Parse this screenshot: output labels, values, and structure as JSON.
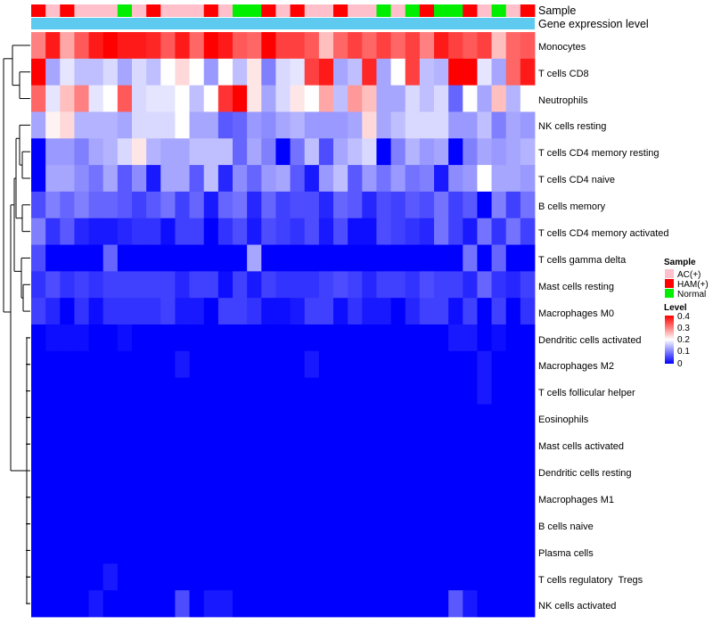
{
  "chart_data": {
    "type": "heatmap",
    "title": "",
    "annotations": [
      {
        "name": "Sample",
        "values": [
          "HAM(+)",
          "AC(+)",
          "HAM(+)",
          "AC(+)",
          "AC(+)",
          "AC(+)",
          "Normal",
          "AC(+)",
          "HAM(+)",
          "AC(+)",
          "AC(+)",
          "AC(+)",
          "HAM(+)",
          "AC(+)",
          "Normal",
          "Normal",
          "HAM(+)",
          "AC(+)",
          "HAM(+)",
          "AC(+)",
          "AC(+)",
          "HAM(+)",
          "AC(+)",
          "AC(+)",
          "Normal",
          "AC(+)",
          "Normal",
          "HAM(+)",
          "Normal",
          "Normal",
          "HAM(+)",
          "AC(+)",
          "Normal",
          "AC(+)",
          "HAM(+)"
        ]
      },
      {
        "name": "Gene expression level",
        "values": "all-high"
      }
    ],
    "rows": [
      "Monocytes",
      "T cells CD8",
      "Neutrophils",
      "NK cells resting",
      "T cells CD4 memory resting",
      "T cells CD4 naive",
      "B cells memory",
      "T cells CD4 memory activated",
      "T cells gamma delta",
      "Mast cells resting",
      "Macrophages M0",
      "Dendritic cells activated",
      "Macrophages M2",
      "T cells follicular helper",
      "Eosinophils",
      "Mast cells activated",
      "Dendritic cells resting",
      "Macrophages M1",
      "B cells naive",
      "Plasma cells",
      "T cells regulatory  Tregs",
      "NK cells activated"
    ],
    "n_columns": 35,
    "values": [
      [
        0.3,
        0.38,
        0.27,
        0.33,
        0.38,
        0.4,
        0.38,
        0.38,
        0.37,
        0.33,
        0.38,
        0.32,
        0.4,
        0.38,
        0.33,
        0.32,
        0.4,
        0.35,
        0.35,
        0.33,
        0.25,
        0.32,
        0.35,
        0.32,
        0.35,
        0.32,
        0.35,
        0.3,
        0.38,
        0.35,
        0.33,
        0.35,
        0.25,
        0.32,
        0.33
      ],
      [
        0.4,
        0.13,
        0.18,
        0.15,
        0.15,
        0.17,
        0.13,
        0.17,
        0.15,
        0.2,
        0.23,
        0.2,
        0.12,
        0.2,
        0.15,
        0.22,
        0.1,
        0.17,
        0.18,
        0.35,
        0.38,
        0.13,
        0.15,
        0.37,
        0.13,
        0.2,
        0.35,
        0.15,
        0.14,
        0.4,
        0.4,
        0.18,
        0.13,
        0.32,
        0.38
      ],
      [
        0.32,
        0.18,
        0.25,
        0.3,
        0.18,
        0.2,
        0.33,
        0.17,
        0.18,
        0.18,
        0.2,
        0.15,
        0.2,
        0.36,
        0.4,
        0.22,
        0.13,
        0.17,
        0.22,
        0.2,
        0.27,
        0.15,
        0.28,
        0.25,
        0.13,
        0.13,
        0.17,
        0.15,
        0.17,
        0.08,
        0.2,
        0.13,
        0.25,
        0.14,
        0.2
      ],
      [
        0.13,
        0.21,
        0.23,
        0.14,
        0.14,
        0.14,
        0.13,
        0.17,
        0.17,
        0.17,
        0.2,
        0.13,
        0.13,
        0.07,
        0.08,
        0.12,
        0.11,
        0.13,
        0.14,
        0.12,
        0.12,
        0.12,
        0.13,
        0.23,
        0.13,
        0.15,
        0.17,
        0.17,
        0.17,
        0.12,
        0.12,
        0.15,
        0.1,
        0.13,
        0.12
      ],
      [
        0.0,
        0.12,
        0.12,
        0.1,
        0.13,
        0.14,
        0.17,
        0.22,
        0.14,
        0.13,
        0.13,
        0.15,
        0.15,
        0.15,
        0.08,
        0.13,
        0.1,
        0.0,
        0.09,
        0.15,
        0.06,
        0.13,
        0.15,
        0.17,
        0.0,
        0.1,
        0.14,
        0.12,
        0.13,
        0.0,
        0.1,
        0.13,
        0.12,
        0.13,
        0.14
      ],
      [
        0.0,
        0.13,
        0.13,
        0.11,
        0.09,
        0.13,
        0.07,
        0.11,
        0.02,
        0.13,
        0.13,
        0.07,
        0.15,
        0.03,
        0.11,
        0.08,
        0.12,
        0.13,
        0.07,
        0.02,
        0.12,
        0.15,
        0.07,
        0.12,
        0.09,
        0.12,
        0.09,
        0.1,
        0.02,
        0.11,
        0.12,
        0.2,
        0.13,
        0.13,
        0.12
      ],
      [
        0.06,
        0.1,
        0.08,
        0.1,
        0.08,
        0.08,
        0.07,
        0.05,
        0.07,
        0.09,
        0.05,
        0.08,
        0.02,
        0.08,
        0.09,
        0.03,
        0.08,
        0.05,
        0.06,
        0.06,
        0.03,
        0.08,
        0.07,
        0.03,
        0.06,
        0.05,
        0.07,
        0.06,
        0.09,
        0.05,
        0.07,
        0.0,
        0.1,
        0.05,
        0.09
      ],
      [
        0.1,
        0.04,
        0.07,
        0.03,
        0.02,
        0.02,
        0.03,
        0.04,
        0.04,
        0.01,
        0.05,
        0.05,
        0.0,
        0.04,
        0.06,
        0.02,
        0.06,
        0.05,
        0.04,
        0.06,
        0.02,
        0.06,
        0.01,
        0.01,
        0.06,
        0.05,
        0.04,
        0.03,
        0.09,
        0.05,
        0.02,
        0.09,
        0.04,
        0.09,
        0.05
      ],
      [
        0.06,
        0.0,
        0.0,
        0.0,
        0.0,
        0.08,
        0.0,
        0.0,
        0.0,
        0.0,
        0.0,
        0.0,
        0.0,
        0.0,
        0.0,
        0.13,
        0.0,
        0.0,
        0.0,
        0.0,
        0.0,
        0.0,
        0.0,
        0.0,
        0.0,
        0.0,
        0.0,
        0.0,
        0.0,
        0.0,
        0.09,
        0.0,
        0.08,
        0.0,
        0.0
      ],
      [
        0.04,
        0.06,
        0.04,
        0.05,
        0.04,
        0.05,
        0.05,
        0.05,
        0.05,
        0.05,
        0.03,
        0.05,
        0.05,
        0.01,
        0.05,
        0.02,
        0.05,
        0.04,
        0.04,
        0.04,
        0.05,
        0.06,
        0.05,
        0.03,
        0.05,
        0.05,
        0.04,
        0.06,
        0.05,
        0.05,
        0.03,
        0.08,
        0.04,
        0.03,
        0.05
      ],
      [
        0.05,
        0.03,
        0.0,
        0.04,
        0.01,
        0.04,
        0.04,
        0.04,
        0.04,
        0.05,
        0.02,
        0.02,
        0.0,
        0.05,
        0.05,
        0.04,
        0.01,
        0.01,
        0.02,
        0.05,
        0.05,
        0.01,
        0.04,
        0.02,
        0.02,
        0.0,
        0.03,
        0.05,
        0.05,
        0.01,
        0.05,
        0.0,
        0.05,
        0.0,
        0.04
      ],
      [
        0.0,
        0.01,
        0.01,
        0.01,
        0.0,
        0.0,
        0.01,
        0.0,
        0.0,
        0.0,
        0.0,
        0.0,
        0.0,
        0.0,
        0.0,
        0.0,
        0.0,
        0.0,
        0.0,
        0.0,
        0.0,
        0.0,
        0.0,
        0.0,
        0.0,
        0.0,
        0.0,
        0.0,
        0.0,
        0.02,
        0.02,
        0.0,
        0.01,
        0.0,
        0.0
      ],
      [
        0.0,
        0.0,
        0.0,
        0.0,
        0.0,
        0.0,
        0.0,
        0.0,
        0.0,
        0.0,
        0.02,
        0.0,
        0.0,
        0.0,
        0.0,
        0.0,
        0.0,
        0.0,
        0.0,
        0.02,
        0.0,
        0.0,
        0.0,
        0.0,
        0.0,
        0.0,
        0.0,
        0.0,
        0.0,
        0.0,
        0.0,
        0.02,
        0.0,
        0.0,
        0.0
      ],
      [
        0.0,
        0.0,
        0.0,
        0.0,
        0.0,
        0.0,
        0.0,
        0.0,
        0.0,
        0.0,
        0.0,
        0.0,
        0.0,
        0.0,
        0.0,
        0.0,
        0.0,
        0.0,
        0.0,
        0.0,
        0.0,
        0.0,
        0.0,
        0.0,
        0.0,
        0.0,
        0.0,
        0.0,
        0.0,
        0.0,
        0.0,
        0.02,
        0.0,
        0.0,
        0.0
      ],
      [
        0.0,
        0.0,
        0.0,
        0.0,
        0.0,
        0.0,
        0.0,
        0.0,
        0.0,
        0.0,
        0.0,
        0.0,
        0.0,
        0.0,
        0.0,
        0.0,
        0.0,
        0.0,
        0.0,
        0.0,
        0.0,
        0.0,
        0.0,
        0.0,
        0.0,
        0.0,
        0.0,
        0.0,
        0.0,
        0.0,
        0.0,
        0.0,
        0.0,
        0.0,
        0.0
      ],
      [
        0.0,
        0.0,
        0.0,
        0.0,
        0.0,
        0.0,
        0.0,
        0.0,
        0.0,
        0.0,
        0.0,
        0.0,
        0.0,
        0.0,
        0.0,
        0.0,
        0.0,
        0.0,
        0.0,
        0.0,
        0.0,
        0.0,
        0.0,
        0.0,
        0.0,
        0.0,
        0.0,
        0.0,
        0.0,
        0.0,
        0.0,
        0.0,
        0.0,
        0.0,
        0.0
      ],
      [
        0.0,
        0.0,
        0.0,
        0.0,
        0.0,
        0.0,
        0.0,
        0.0,
        0.0,
        0.0,
        0.0,
        0.0,
        0.0,
        0.0,
        0.0,
        0.0,
        0.0,
        0.0,
        0.0,
        0.0,
        0.0,
        0.0,
        0.0,
        0.0,
        0.0,
        0.0,
        0.0,
        0.0,
        0.0,
        0.0,
        0.0,
        0.0,
        0.0,
        0.0,
        0.0
      ],
      [
        0.0,
        0.0,
        0.0,
        0.0,
        0.0,
        0.0,
        0.0,
        0.0,
        0.0,
        0.0,
        0.0,
        0.0,
        0.0,
        0.0,
        0.0,
        0.0,
        0.0,
        0.0,
        0.0,
        0.0,
        0.0,
        0.0,
        0.0,
        0.0,
        0.0,
        0.0,
        0.0,
        0.0,
        0.0,
        0.0,
        0.0,
        0.0,
        0.0,
        0.0,
        0.0
      ],
      [
        0.0,
        0.0,
        0.0,
        0.0,
        0.0,
        0.0,
        0.0,
        0.0,
        0.0,
        0.0,
        0.0,
        0.0,
        0.0,
        0.0,
        0.0,
        0.0,
        0.0,
        0.0,
        0.0,
        0.0,
        0.0,
        0.0,
        0.0,
        0.0,
        0.0,
        0.0,
        0.0,
        0.0,
        0.0,
        0.0,
        0.0,
        0.0,
        0.0,
        0.0,
        0.0
      ],
      [
        0.0,
        0.0,
        0.0,
        0.0,
        0.0,
        0.0,
        0.0,
        0.0,
        0.0,
        0.0,
        0.0,
        0.0,
        0.0,
        0.0,
        0.0,
        0.0,
        0.0,
        0.0,
        0.0,
        0.0,
        0.0,
        0.0,
        0.0,
        0.0,
        0.0,
        0.0,
        0.0,
        0.0,
        0.0,
        0.0,
        0.0,
        0.0,
        0.0,
        0.0,
        0.0
      ],
      [
        0.0,
        0.0,
        0.0,
        0.0,
        0.0,
        0.02,
        0.0,
        0.0,
        0.0,
        0.0,
        0.0,
        0.0,
        0.0,
        0.0,
        0.0,
        0.0,
        0.0,
        0.0,
        0.0,
        0.0,
        0.0,
        0.0,
        0.0,
        0.0,
        0.0,
        0.0,
        0.0,
        0.0,
        0.0,
        0.0,
        0.0,
        0.0,
        0.0,
        0.0,
        0.0
      ],
      [
        0.0,
        0.0,
        0.0,
        0.0,
        0.02,
        0.0,
        0.0,
        0.0,
        0.0,
        0.0,
        0.06,
        0.0,
        0.02,
        0.02,
        0.0,
        0.0,
        0.0,
        0.0,
        0.0,
        0.0,
        0.0,
        0.0,
        0.0,
        0.0,
        0.0,
        0.0,
        0.0,
        0.0,
        0.0,
        0.07,
        0.02,
        0.0,
        0.0,
        0.0,
        0.0
      ]
    ],
    "color_scale": {
      "min": 0,
      "mid": 0.2,
      "max": 0.4,
      "low_color": "#0000ff",
      "mid_color": "#ffffff",
      "high_color": "#ff0000"
    },
    "annotation_colors": {
      "AC(+)": "#ffc0cb",
      "HAM(+)": "#ff0000",
      "Normal": "#00ee00",
      "Gene expression level": "#5ecaf0"
    },
    "dendrogram": "rows",
    "legend": {
      "sample_title": "Sample",
      "sample_entries": [
        "AC(+)",
        "HAM(+)",
        "Normal"
      ],
      "level_title": "Level",
      "level_ticks": [
        "0.4",
        "0.3",
        "0.2",
        "0.1",
        "0"
      ]
    }
  }
}
